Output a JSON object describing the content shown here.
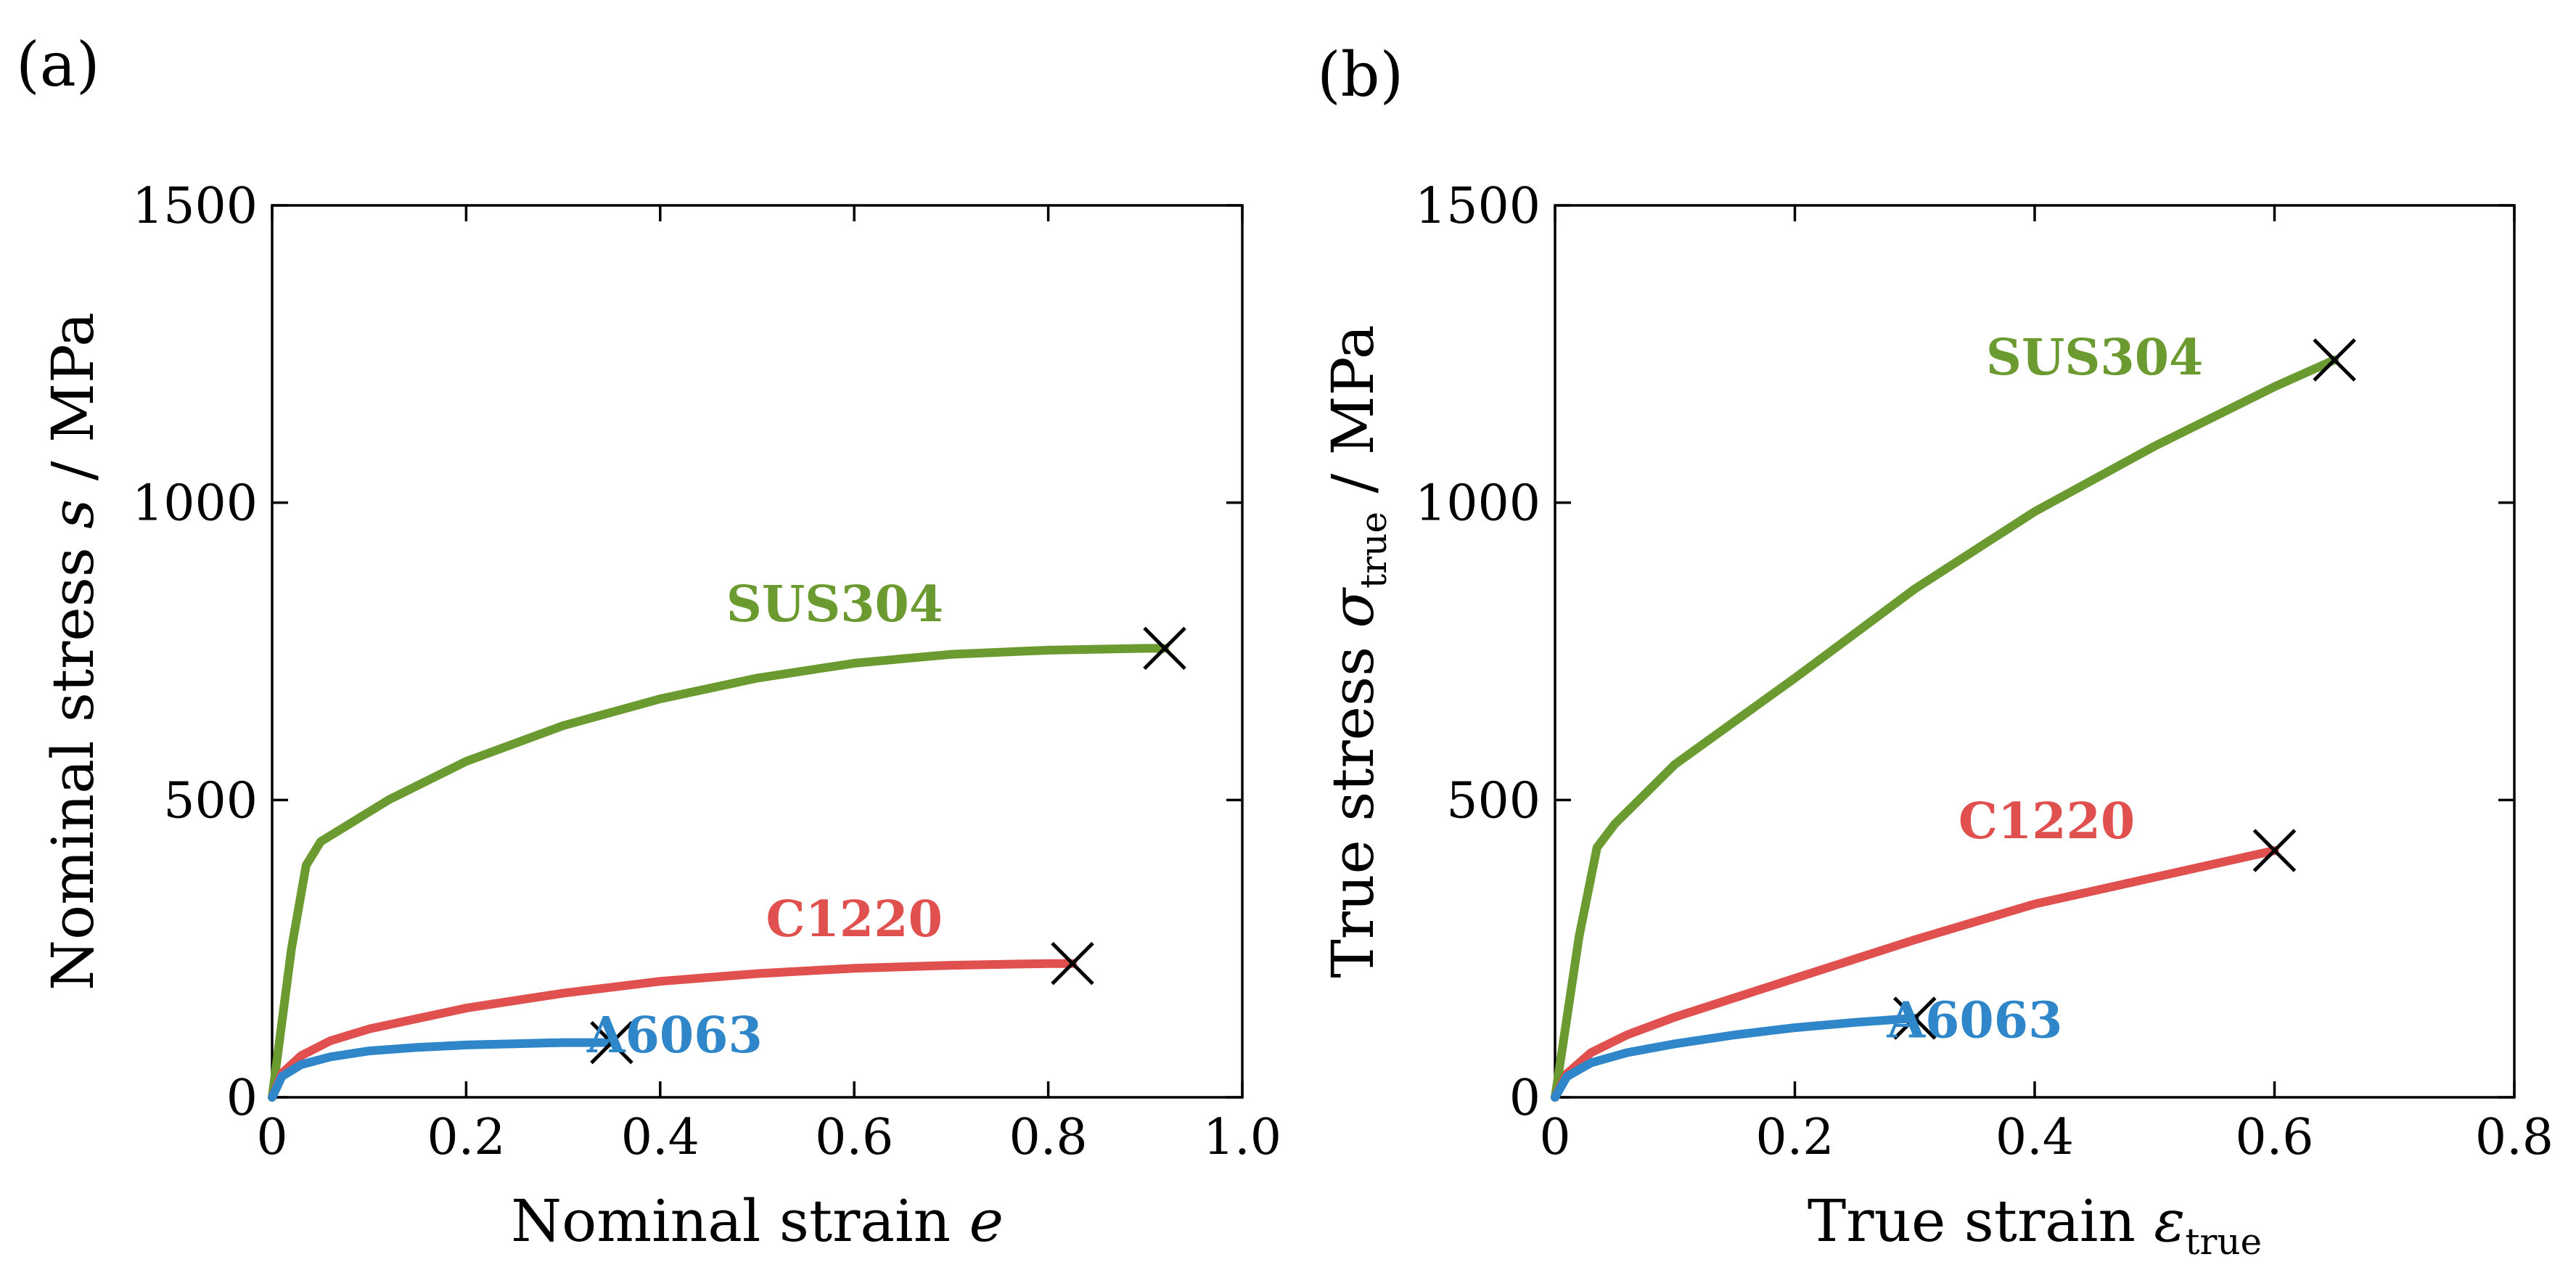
{
  "colors": {
    "SUS304": "#6a9a30",
    "C1220": "#e0504e",
    "A6063": "#2f86c8"
  },
  "chart_data": [
    {
      "type": "line",
      "panel_label": "(a)",
      "xlabel": "Nominal strain e",
      "xlabel_parts": {
        "main": "Nominal strain ",
        "symbol": "e",
        "sub": ""
      },
      "ylabel": "Nominal stress s / MPa",
      "ylabel_parts": {
        "main": "Nominal stress ",
        "symbol": "s",
        "sub": "",
        "unit": " / MPa"
      },
      "xlim": [
        0,
        1.0
      ],
      "ylim": [
        0,
        1500
      ],
      "xticks": [
        0,
        0.2,
        0.4,
        0.6,
        0.8,
        1.0
      ],
      "xtick_labels": [
        "0",
        "0.2",
        "0.4",
        "0.6",
        "0.8",
        "1.0"
      ],
      "yticks": [
        0,
        500,
        1000,
        1500
      ],
      "ytick_labels": [
        "0",
        "500",
        "1000",
        "1500"
      ],
      "grid": false,
      "legend": "none",
      "series": [
        {
          "name": "SUS304",
          "x": [
            0,
            0.02,
            0.035,
            0.05,
            0.08,
            0.12,
            0.2,
            0.3,
            0.4,
            0.5,
            0.6,
            0.7,
            0.8,
            0.9,
            0.92
          ],
          "y": [
            0,
            250,
            390,
            430,
            460,
            500,
            565,
            625,
            670,
            705,
            730,
            745,
            752,
            755,
            755
          ],
          "fracture": [
            0.92,
            755
          ],
          "label_pos": [
            0.58,
            830
          ]
        },
        {
          "name": "C1220",
          "x": [
            0,
            0.01,
            0.03,
            0.06,
            0.1,
            0.2,
            0.3,
            0.4,
            0.5,
            0.6,
            0.7,
            0.8,
            0.825
          ],
          "y": [
            0,
            40,
            70,
            95,
            115,
            150,
            175,
            195,
            208,
            217,
            222,
            225,
            225
          ],
          "fracture": [
            0.825,
            225
          ],
          "label_pos": [
            0.6,
            300
          ]
        },
        {
          "name": "A6063",
          "x": [
            0,
            0.01,
            0.03,
            0.06,
            0.1,
            0.15,
            0.2,
            0.25,
            0.3,
            0.35
          ],
          "y": [
            0,
            35,
            55,
            68,
            78,
            84,
            88,
            90,
            92,
            92
          ],
          "fracture": [
            0.35,
            92
          ],
          "label_pos": [
            0.415,
            105
          ]
        }
      ]
    },
    {
      "type": "line",
      "panel_label": "(b)",
      "xlabel": "True strain ε_true",
      "xlabel_parts": {
        "main": "True strain ",
        "symbol": "ε",
        "sub": "true"
      },
      "ylabel": "True stress σ_true / MPa",
      "ylabel_parts": {
        "main": "True stress ",
        "symbol": "σ",
        "sub": "true",
        "unit": " / MPa"
      },
      "xlim": [
        0,
        0.8
      ],
      "ylim": [
        0,
        1500
      ],
      "xticks": [
        0,
        0.2,
        0.4,
        0.6,
        0.8
      ],
      "xtick_labels": [
        "0",
        "0.2",
        "0.4",
        "0.6",
        "0.8"
      ],
      "yticks": [
        0,
        500,
        1000,
        1500
      ],
      "ytick_labels": [
        "0",
        "500",
        "1000",
        "1500"
      ],
      "grid": false,
      "legend": "none",
      "series": [
        {
          "name": "SUS304",
          "x": [
            0,
            0.02,
            0.035,
            0.05,
            0.1,
            0.2,
            0.3,
            0.4,
            0.5,
            0.6,
            0.65
          ],
          "y": [
            0,
            270,
            420,
            460,
            560,
            705,
            855,
            985,
            1095,
            1195,
            1240
          ],
          "fracture": [
            0.65,
            1240
          ],
          "label_pos": [
            0.45,
            1245
          ]
        },
        {
          "name": "C1220",
          "x": [
            0,
            0.01,
            0.03,
            0.06,
            0.1,
            0.2,
            0.3,
            0.4,
            0.5,
            0.6
          ],
          "y": [
            0,
            40,
            75,
            105,
            135,
            200,
            265,
            325,
            370,
            415
          ],
          "fracture": [
            0.6,
            415
          ],
          "label_pos": [
            0.41,
            465
          ]
        },
        {
          "name": "A6063",
          "x": [
            0,
            0.01,
            0.03,
            0.06,
            0.1,
            0.15,
            0.2,
            0.25,
            0.3
          ],
          "y": [
            0,
            35,
            58,
            75,
            90,
            105,
            117,
            126,
            133
          ],
          "fracture": [
            0.3,
            133
          ],
          "label_pos": [
            0.35,
            130
          ]
        }
      ]
    }
  ]
}
